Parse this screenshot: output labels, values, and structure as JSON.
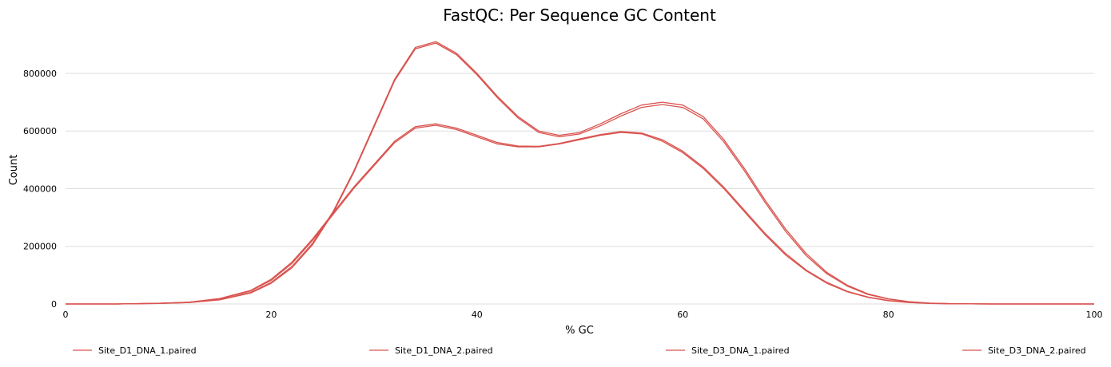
{
  "chart_data": {
    "type": "line",
    "title": "FastQC: Per Sequence GC Content",
    "xlabel": "% GC",
    "ylabel": "Count",
    "xlim": [
      0,
      100
    ],
    "ylim": [
      0,
      930000
    ],
    "xticks": [
      0,
      20,
      40,
      60,
      80,
      100
    ],
    "yticks": [
      0,
      200000,
      400000,
      600000,
      800000
    ],
    "grid": "horizontal",
    "legend_position": "bottom",
    "line_color": "#d9534f",
    "x": [
      0,
      5,
      9,
      12,
      15,
      18,
      20,
      22,
      24,
      26,
      28,
      30,
      32,
      34,
      36,
      38,
      40,
      42,
      44,
      46,
      48,
      50,
      52,
      54,
      56,
      58,
      60,
      62,
      64,
      66,
      68,
      70,
      72,
      74,
      76,
      78,
      80,
      82,
      84,
      86,
      88,
      90,
      95,
      100
    ],
    "series": [
      {
        "name": "Site_D1_DNA_1.paired",
        "values": [
          0,
          0,
          2000,
          5000,
          15000,
          40000,
          75000,
          130000,
          210000,
          320000,
          460000,
          620000,
          780000,
          890000,
          910000,
          870000,
          800000,
          720000,
          650000,
          600000,
          585000,
          595000,
          625000,
          660000,
          690000,
          700000,
          690000,
          650000,
          570000,
          470000,
          360000,
          260000,
          175000,
          110000,
          65000,
          35000,
          18000,
          8000,
          3000,
          1000,
          300,
          0,
          0,
          0
        ]
      },
      {
        "name": "Site_D1_DNA_2.paired",
        "values": [
          0,
          0,
          2000,
          5000,
          14000,
          38000,
          72000,
          125000,
          205000,
          315000,
          455000,
          615000,
          775000,
          885000,
          905000,
          865000,
          795000,
          715000,
          645000,
          595000,
          580000,
          590000,
          618000,
          652000,
          682000,
          692000,
          682000,
          642000,
          562000,
          462000,
          352000,
          252000,
          168000,
          105000,
          62000,
          33000,
          17000,
          7500,
          2800,
          900,
          250,
          0,
          0,
          0
        ]
      },
      {
        "name": "Site_D3_DNA_1.paired",
        "values": [
          0,
          0,
          2500,
          6000,
          18000,
          45000,
          82000,
          140000,
          220000,
          310000,
          400000,
          480000,
          560000,
          610000,
          620000,
          605000,
          580000,
          555000,
          545000,
          545000,
          555000,
          570000,
          585000,
          595000,
          590000,
          565000,
          525000,
          470000,
          400000,
          320000,
          240000,
          170000,
          115000,
          72000,
          42000,
          23000,
          11000,
          5000,
          2000,
          700,
          200,
          0,
          0,
          0
        ]
      },
      {
        "name": "Site_D3_DNA_2.paired",
        "values": [
          0,
          0,
          2500,
          6000,
          19000,
          47000,
          86000,
          145000,
          225000,
          315000,
          405000,
          485000,
          565000,
          615000,
          625000,
          610000,
          585000,
          560000,
          548000,
          547000,
          557000,
          573000,
          588000,
          598000,
          593000,
          570000,
          530000,
          475000,
          405000,
          325000,
          245000,
          175000,
          118000,
          75000,
          44000,
          24000,
          12000,
          5500,
          2200,
          800,
          250,
          0,
          0,
          0
        ]
      }
    ]
  }
}
